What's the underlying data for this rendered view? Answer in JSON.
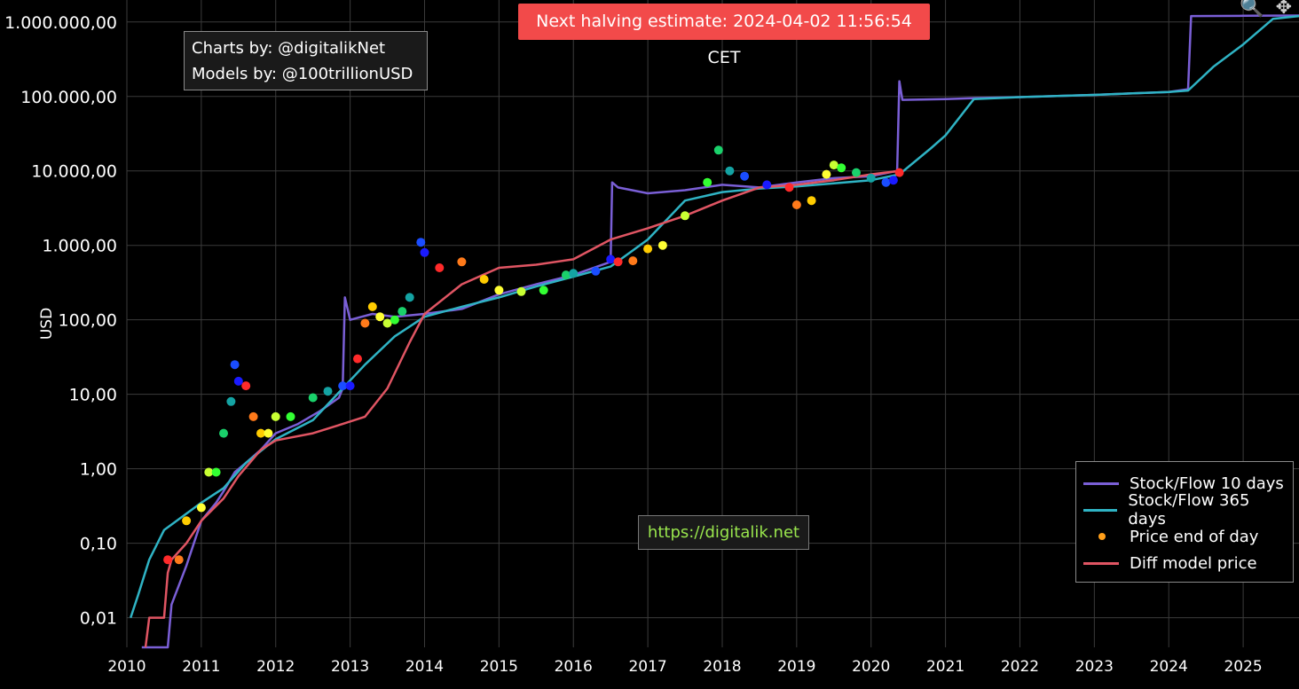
{
  "halving_banner": {
    "text": "Next halving estimate: 2024-04-02 11:56:54 CET",
    "color": "#f24a4a"
  },
  "credits": {
    "line1": "Charts by: @digitalikNet",
    "line2": "Models by: @100trillionUSD"
  },
  "website": {
    "text": "https://digitalik.net",
    "color": "#99e64d"
  },
  "toolbar": {
    "zoom_icon": "zoom-icon",
    "pan_icon": "pan-icon"
  },
  "chart_data": {
    "type": "line",
    "title": "",
    "xlabel": "",
    "ylabel": "USD",
    "y_scale": "log",
    "ylim": [
      0.004,
      1500000
    ],
    "xlim": [
      2010.0,
      2025.75
    ],
    "grid": true,
    "legend_position": "bottom-right",
    "y_ticks": [
      {
        "value": 0.01,
        "label": "0,01"
      },
      {
        "value": 0.1,
        "label": "0,10"
      },
      {
        "value": 1,
        "label": "1,00"
      },
      {
        "value": 10,
        "label": "10,00"
      },
      {
        "value": 100,
        "label": "100,00"
      },
      {
        "value": 1000,
        "label": "1.000,00"
      },
      {
        "value": 10000,
        "label": "10.000,00"
      },
      {
        "value": 100000,
        "label": "100.000,00"
      },
      {
        "value": 1000000,
        "label": "1.000.000,00"
      }
    ],
    "x_ticks": [
      "2010",
      "2011",
      "2012",
      "2013",
      "2014",
      "2015",
      "2016",
      "2017",
      "2018",
      "2019",
      "2020",
      "2021",
      "2022",
      "2023",
      "2024",
      "2025"
    ],
    "series": [
      {
        "name": "Stock/Flow 10 days",
        "color": "#7a5fd6",
        "kind": "line",
        "x": [
          2010.2,
          2010.55,
          2010.6,
          2010.8,
          2011.0,
          2011.2,
          2011.3,
          2011.45,
          2011.6,
          2011.8,
          2012.0,
          2012.3,
          2012.6,
          2012.85,
          2012.9,
          2012.93,
          2013.0,
          2013.3,
          2013.6,
          2014.0,
          2014.5,
          2015.0,
          2015.5,
          2016.0,
          2016.5,
          2016.52,
          2016.6,
          2017.0,
          2017.5,
          2018.0,
          2018.5,
          2019.0,
          2019.5,
          2020.0,
          2020.35,
          2020.38,
          2020.42,
          2021.0,
          2021.4,
          2022.0,
          2023.0,
          2024.0,
          2024.26,
          2024.3,
          2025.0,
          2025.75
        ],
        "y": [
          0.004,
          0.004,
          0.015,
          0.05,
          0.2,
          0.35,
          0.5,
          0.9,
          1.2,
          1.8,
          3,
          4,
          6,
          9,
          12,
          200,
          100,
          120,
          110,
          120,
          140,
          220,
          300,
          400,
          600,
          7000,
          6000,
          5000,
          5500,
          6500,
          6000,
          7000,
          8000,
          8500,
          10000,
          160000,
          90000,
          92000,
          95000,
          98000,
          105000,
          115000,
          125000,
          1200000,
          1210000,
          1220000
        ]
      },
      {
        "name": "Stock/Flow 365 days",
        "color": "#2fb3c4",
        "kind": "line",
        "x": [
          2010.05,
          2010.15,
          2010.3,
          2010.5,
          2010.8,
          2011.0,
          2011.3,
          2011.6,
          2012.0,
          2012.5,
          2012.9,
          2013.2,
          2013.6,
          2014.0,
          2014.5,
          2015.0,
          2015.5,
          2016.0,
          2016.5,
          2017.0,
          2017.5,
          2018.0,
          2018.5,
          2019.0,
          2019.5,
          2020.0,
          2020.38,
          2020.8,
          2021.0,
          2021.38,
          2022.0,
          2023.0,
          2024.0,
          2024.26,
          2024.6,
          2025.0,
          2025.4,
          2025.75
        ],
        "y": [
          0.01,
          0.02,
          0.06,
          0.15,
          0.25,
          0.35,
          0.55,
          1.2,
          2.5,
          4.5,
          12,
          25,
          60,
          110,
          150,
          200,
          280,
          380,
          520,
          1200,
          4000,
          5200,
          5800,
          6200,
          6800,
          7500,
          9000,
          20000,
          30000,
          92000,
          98000,
          105000,
          115000,
          120000,
          250000,
          500000,
          1100000,
          1200000
        ]
      },
      {
        "name": "Diff model price",
        "color": "#e05563",
        "kind": "line",
        "x": [
          2010.25,
          2010.3,
          2010.5,
          2010.55,
          2010.6,
          2010.8,
          2011.0,
          2011.3,
          2011.5,
          2011.8,
          2012.0,
          2012.5,
          2012.9,
          2013.2,
          2013.5,
          2013.8,
          2014.0,
          2014.5,
          2015.0,
          2015.5,
          2016.0,
          2016.5,
          2017.0,
          2017.5,
          2018.0,
          2018.5,
          2019.0,
          2019.5,
          2020.0,
          2020.38
        ],
        "y": [
          0.004,
          0.01,
          0.01,
          0.04,
          0.06,
          0.1,
          0.2,
          0.4,
          0.8,
          1.8,
          2.4,
          3,
          4,
          5,
          12,
          50,
          120,
          300,
          500,
          550,
          650,
          1200,
          1700,
          2500,
          4000,
          6000,
          6500,
          7500,
          9000,
          10000
        ]
      },
      {
        "name": "Price end of day",
        "color": "#ff9f1a",
        "kind": "points",
        "x": [
          2010.55,
          2010.7,
          2010.8,
          2011.0,
          2011.1,
          2011.2,
          2011.3,
          2011.4,
          2011.45,
          2011.5,
          2011.6,
          2011.7,
          2011.8,
          2011.9,
          2012.0,
          2012.2,
          2012.5,
          2012.7,
          2012.9,
          2013.0,
          2013.1,
          2013.2,
          2013.3,
          2013.4,
          2013.5,
          2013.6,
          2013.7,
          2013.8,
          2013.95,
          2014.0,
          2014.2,
          2014.5,
          2014.8,
          2015.0,
          2015.3,
          2015.6,
          2015.9,
          2016.0,
          2016.3,
          2016.5,
          2016.6,
          2016.8,
          2017.0,
          2017.2,
          2017.5,
          2017.8,
          2017.95,
          2018.1,
          2018.3,
          2018.6,
          2018.9,
          2019.0,
          2019.2,
          2019.4,
          2019.5,
          2019.6,
          2019.8,
          2020.0,
          2020.2,
          2020.3,
          2020.38
        ],
        "y": [
          0.06,
          0.06,
          0.2,
          0.3,
          0.9,
          0.9,
          3,
          8,
          25,
          15,
          13,
          5,
          3,
          3,
          5,
          5,
          9,
          11,
          13,
          13,
          30,
          90,
          150,
          110,
          90,
          100,
          130,
          200,
          1100,
          800,
          500,
          600,
          350,
          250,
          240,
          250,
          400,
          420,
          450,
          650,
          600,
          620,
          900,
          1000,
          2500,
          7000,
          19000,
          10000,
          8500,
          6500,
          6000,
          3500,
          4000,
          9000,
          12000,
          11000,
          9500,
          8000,
          7000,
          7500,
          9500
        ]
      }
    ]
  },
  "legend": {
    "items": [
      {
        "label": "Stock/Flow 10 days",
        "color": "#7a5fd6",
        "kind": "line"
      },
      {
        "label": "Stock/Flow 365 days",
        "color": "#2fb3c4",
        "kind": "line"
      },
      {
        "label": "Price end of day",
        "color": "#ff9f1a",
        "kind": "dot"
      },
      {
        "label": "Diff model price",
        "color": "#e05563",
        "kind": "line"
      }
    ]
  }
}
